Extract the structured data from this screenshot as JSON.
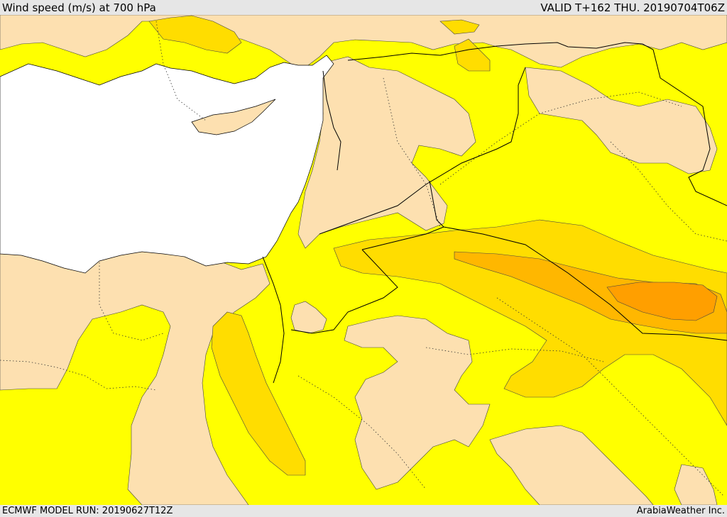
{
  "header": {
    "title": "Wind speed (m/s) at 700 hPa",
    "valid": "VALID T+162 THU. 20190704T06Z"
  },
  "footer": {
    "model_run": "ECMWF MODEL RUN: 20190627T12Z",
    "credit": "ArabiaWeather Inc."
  },
  "colors": {
    "sea": "#ffffff",
    "band_lt_5": "#fde0b0",
    "band_5_10": "#ffff00",
    "band_10_15": "#ffdd00",
    "band_15_20": "#ffb700",
    "band_20_25": "#ff9f00",
    "coastline": "#000000",
    "border": "#000000"
  }
}
